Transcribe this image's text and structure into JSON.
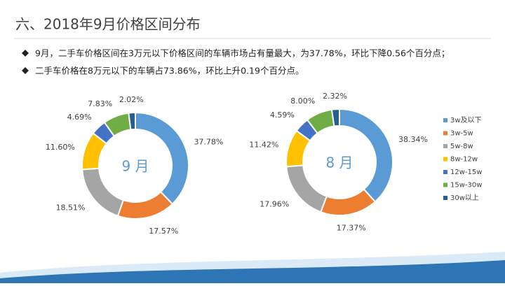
{
  "title": "六、2018年9月价格区间分布",
  "bullets": [
    "9月，二手车价格区间在3万元以下价格区间的车辆市场占有量最大，为37.78%，环比下降0.56个百分点；",
    "二手车价格在8万元以下的车辆占73.86%，环比上升0.19个百分点。"
  ],
  "chart_data": [
    {
      "type": "donut",
      "center_label": "9 月",
      "categories": [
        "3w及以下",
        "3w-5w",
        "5w-8w",
        "8w-12w",
        "12w-15w",
        "15w-30w",
        "30w以上"
      ],
      "values": [
        37.78,
        17.57,
        18.51,
        11.6,
        4.69,
        7.83,
        2.02
      ],
      "value_labels": [
        "37.78%",
        "17.57%",
        "18.51%",
        "11.60%",
        "4.69%",
        "7.83%",
        "2.02%"
      ],
      "colors": [
        "#5b9bd5",
        "#ed7d31",
        "#a5a5a5",
        "#ffc000",
        "#4472c4",
        "#70ad47",
        "#255e91"
      ]
    },
    {
      "type": "donut",
      "center_label": "8 月",
      "categories": [
        "3w及以下",
        "3w-5w",
        "5w-8w",
        "8w-12w",
        "12w-15w",
        "15w-30w",
        "30w以上"
      ],
      "values": [
        38.34,
        17.37,
        17.96,
        11.42,
        4.59,
        8.0,
        2.32
      ],
      "value_labels": [
        "38.34%",
        "17.37%",
        "17.96%",
        "11.42%",
        "4.59%",
        "8.00%",
        "2.32%"
      ],
      "colors": [
        "#5b9bd5",
        "#ed7d31",
        "#a5a5a5",
        "#ffc000",
        "#4472c4",
        "#70ad47",
        "#255e91"
      ],
      "legend": "right"
    }
  ]
}
